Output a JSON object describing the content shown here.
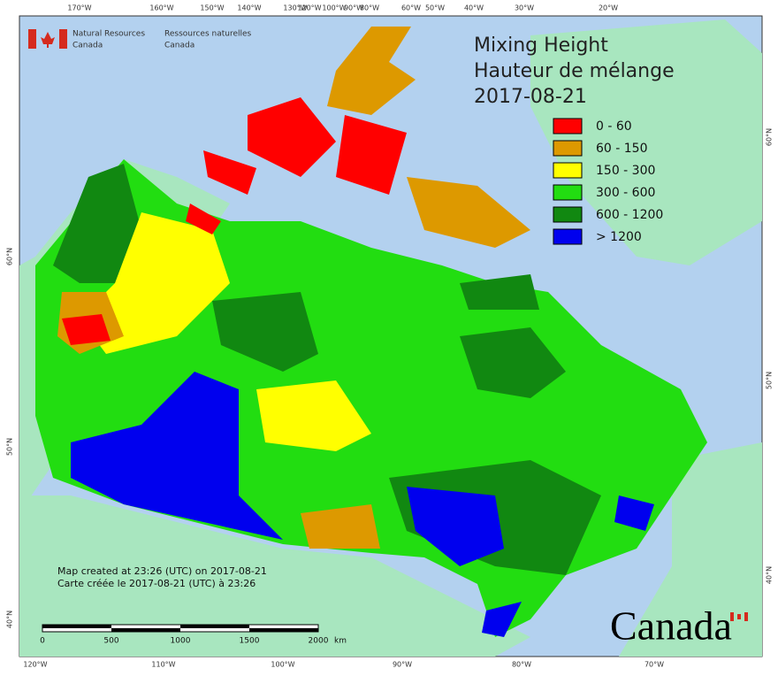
{
  "logo": {
    "en": [
      "Natural Resources",
      "Canada"
    ],
    "fr": [
      "Ressources naturelles",
      "Canada"
    ]
  },
  "title": [
    "Mixing Height",
    "Hauteur de mélange",
    "2017-08-21"
  ],
  "legend": [
    {
      "label": "0 - 60",
      "color": "#ff0000"
    },
    {
      "label": "60 - 150",
      "color": "#dd9900"
    },
    {
      "label": "150 - 300",
      "color": "#ffff00"
    },
    {
      "label": "300 - 600",
      "color": "#22dd11"
    },
    {
      "label": "600 - 1200",
      "color": "#118811"
    },
    {
      "label": "> 1200",
      "color": "#0000ee"
    }
  ],
  "top_longitudes": [
    "170°W",
    "160°W",
    "150°W",
    "140°W",
    "130°W",
    "120°W",
    "100°W",
    "90°W",
    "80°W",
    "60°W",
    "50°W",
    "40°W",
    "30°W",
    "20°W"
  ],
  "bottom_longitudes": [
    "120°W",
    "110°W",
    "100°W",
    "90°W",
    "80°W",
    "70°W"
  ],
  "left_latitudes": [
    "60°N",
    "50°N",
    "40°N"
  ],
  "right_latitudes": [
    "60°N",
    "50°N",
    "40°N"
  ],
  "notes": [
    "Map created at 23:26 (UTC) on 2017-08-21",
    "Carte créée le 2017-08-21 (UTC) à 23:26"
  ],
  "scale_bar": [
    "0",
    "500",
    "1000",
    "1500",
    "2000",
    "km"
  ],
  "wordmark": "Canada"
}
